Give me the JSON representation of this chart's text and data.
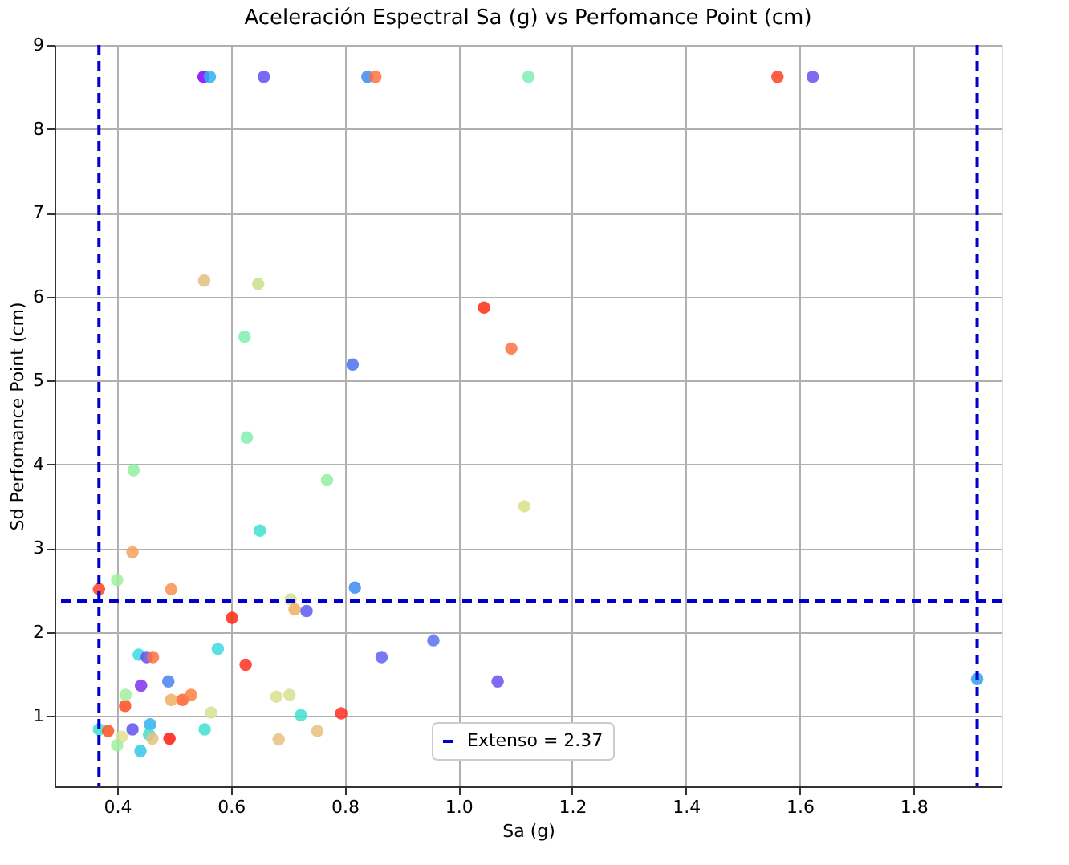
{
  "chart_data": {
    "type": "scatter",
    "title": "Aceleración Espectral Sa (g) vs Perfomance Point (cm)",
    "xlabel": "Sa (g)",
    "ylabel": "Sd Perfomance Point (cm)",
    "x": [
      0.552,
      0.563,
      0.658,
      0.84,
      0.854,
      1.123,
      1.561,
      1.623,
      0.553,
      0.648,
      0.624,
      0.814,
      1.045,
      1.093,
      0.628,
      0.429,
      0.769,
      1.116,
      0.651,
      0.427,
      0.4,
      0.368,
      0.495,
      0.818,
      0.705,
      0.712,
      0.733,
      0.602,
      0.577,
      0.438,
      0.452,
      0.463,
      0.626,
      0.865,
      0.956,
      1.069,
      0.49,
      0.442,
      0.414,
      0.415,
      0.495,
      0.515,
      0.53,
      0.565,
      0.68,
      0.703,
      0.723,
      0.794,
      0.752,
      0.684,
      0.368,
      0.384,
      0.427,
      0.408,
      0.4,
      0.458,
      0.456,
      0.462,
      0.441,
      0.492,
      0.554,
      1.912
    ],
    "values": [
      8.62,
      8.62,
      8.62,
      8.62,
      8.62,
      8.62,
      8.62,
      8.62,
      6.19,
      6.15,
      5.52,
      5.19,
      5.87,
      5.38,
      4.32,
      3.93,
      3.81,
      3.5,
      3.21,
      2.95,
      2.62,
      2.51,
      2.51,
      2.53,
      2.39,
      2.27,
      2.25,
      2.17,
      1.8,
      1.73,
      1.7,
      1.7,
      1.61,
      1.7,
      1.9,
      1.41,
      1.41,
      1.36,
      1.12,
      1.25,
      1.19,
      1.19,
      1.25,
      1.04,
      1.23,
      1.25,
      1.01,
      1.03,
      0.82,
      0.72,
      0.84,
      0.82,
      0.84,
      0.75,
      0.65,
      0.9,
      0.78,
      0.73,
      0.58,
      0.73,
      0.84,
      1.44
    ],
    "colors": [
      "#8000ff",
      "#2eb0f0",
      "#6050f0",
      "#3c8cf0",
      "#ff7040",
      "#80f0b0",
      "#ff4020",
      "#6a50f0",
      "#e0c080",
      "#c8e08a",
      "#80f0b0",
      "#4a70f0",
      "#ff2a10",
      "#ff7040",
      "#80f0b0",
      "#90f0a0",
      "#90f0a0",
      "#d8e08a",
      "#40e0d0",
      "#f8a060",
      "#a0f0a0",
      "#ff4020",
      "#f89050",
      "#3c8cf0",
      "#d0e090",
      "#f0b060",
      "#5a5af0",
      "#ff2a10",
      "#40d8e0",
      "#40d8e0",
      "#6050f0",
      "#ff7040",
      "#ff3020",
      "#6060f0",
      "#5a70f0",
      "#6a50f0",
      "#4a80f0",
      "#8030f0",
      "#ff4a20",
      "#a0f0a0",
      "#f0b060",
      "#ff6030",
      "#ff8040",
      "#d8e090",
      "#d8e090",
      "#d8e090",
      "#40e0d0",
      "#ff3020",
      "#e8c080",
      "#e8c080",
      "#40e0d0",
      "#ff5020",
      "#6050f0",
      "#e0e090",
      "#a0f0a0",
      "#30b0f0",
      "#40e0d0",
      "#e8c080",
      "#30c8e8",
      "#ff1a10",
      "#40e0d0",
      "#2ea0f0"
    ],
    "marker": "circle",
    "xlim": [
      0.29,
      1.955
    ],
    "xticks": [
      0.4,
      0.6,
      0.8,
      {
        "value": 1,
        "label": "1.0"
      },
      1.2,
      1.4,
      1.6,
      1.8
    ],
    "ylim": [
      0.16,
      9.0
    ],
    "yticks": [
      1,
      2,
      3,
      4,
      5,
      6,
      7,
      8,
      9
    ],
    "grid": true,
    "legend": "bottom",
    "ref_lines": [
      {
        "axis": "y",
        "value": 2.37,
        "label": "Extenso = 2.37",
        "color": "#0000cc",
        "line_style": "dashed"
      },
      {
        "axis": "x",
        "value": 0.368,
        "color": "#0000cc",
        "line_style": "dashed"
      },
      {
        "axis": "x",
        "value": 1.912,
        "color": "#0000cc",
        "line_style": "dashed"
      }
    ]
  }
}
